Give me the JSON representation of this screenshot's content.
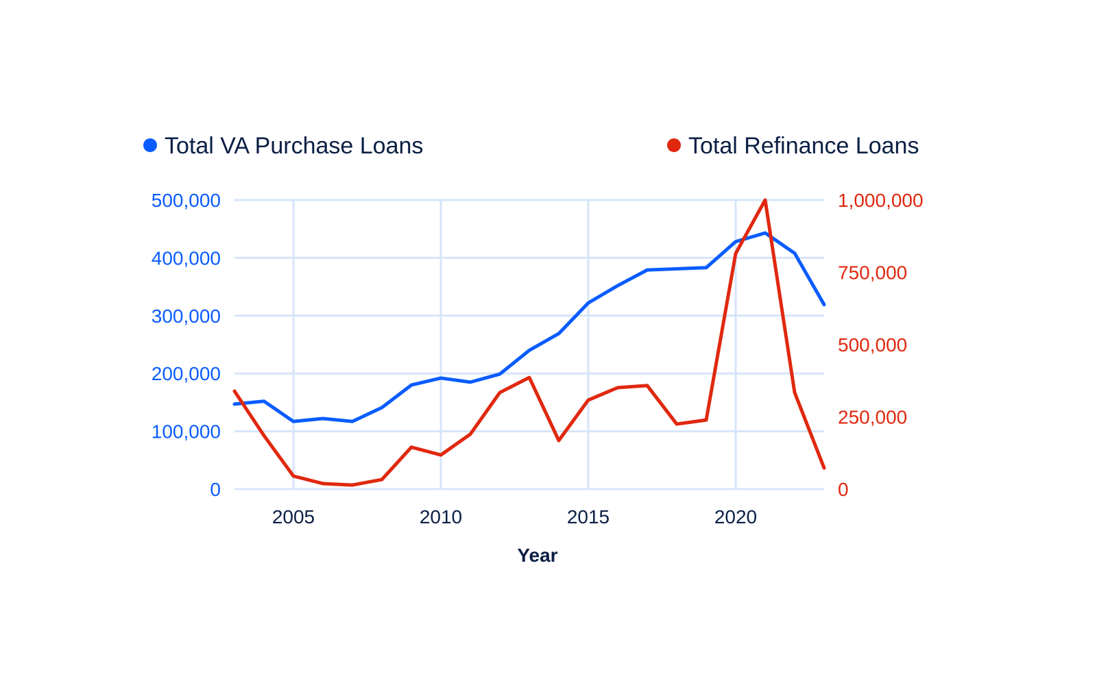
{
  "chart_data": {
    "type": "line",
    "title": "",
    "xlabel": "Year",
    "x": [
      2003,
      2004,
      2005,
      2006,
      2007,
      2008,
      2009,
      2010,
      2011,
      2012,
      2013,
      2014,
      2015,
      2016,
      2017,
      2018,
      2019,
      2020,
      2021,
      2022,
      2023
    ],
    "xlim": [
      2003,
      2023
    ],
    "xticks": [
      2005,
      2010,
      2015,
      2020
    ],
    "xtick_labels": [
      "2005",
      "2010",
      "2015",
      "2020"
    ],
    "series": [
      {
        "name": "Total VA Purchase Loans",
        "axis": "left",
        "color": "#0a5cff",
        "values": [
          147000,
          152000,
          117000,
          122000,
          117000,
          141000,
          180000,
          192000,
          185000,
          199000,
          240000,
          269000,
          322000,
          352000,
          379000,
          381000,
          383000,
          428000,
          443000,
          408000,
          319000
        ]
      },
      {
        "name": "Total Refinance Loans",
        "axis": "right",
        "color": "#e0280f",
        "values": [
          339000,
          185000,
          45000,
          19000,
          14000,
          33000,
          145000,
          118000,
          190000,
          334000,
          386000,
          168000,
          308000,
          351000,
          358000,
          225000,
          239000,
          815000,
          1000000,
          334000,
          73000
        ]
      }
    ],
    "y_left": {
      "lim": [
        0,
        500000
      ],
      "ticks": [
        0,
        100000,
        200000,
        300000,
        400000,
        500000
      ],
      "tick_labels": [
        "0",
        "100,000",
        "200,000",
        "300,000",
        "400,000",
        "500,000"
      ]
    },
    "y_right": {
      "lim": [
        0,
        1000000
      ],
      "ticks": [
        0,
        250000,
        500000,
        750000,
        1000000
      ],
      "tick_labels": [
        "0",
        "250,000",
        "500,000",
        "750,000",
        "1,000,000"
      ]
    },
    "grid": true,
    "legend": "top",
    "colors": {
      "text": "#0b1f44",
      "grid": "#d6e5fa"
    }
  }
}
